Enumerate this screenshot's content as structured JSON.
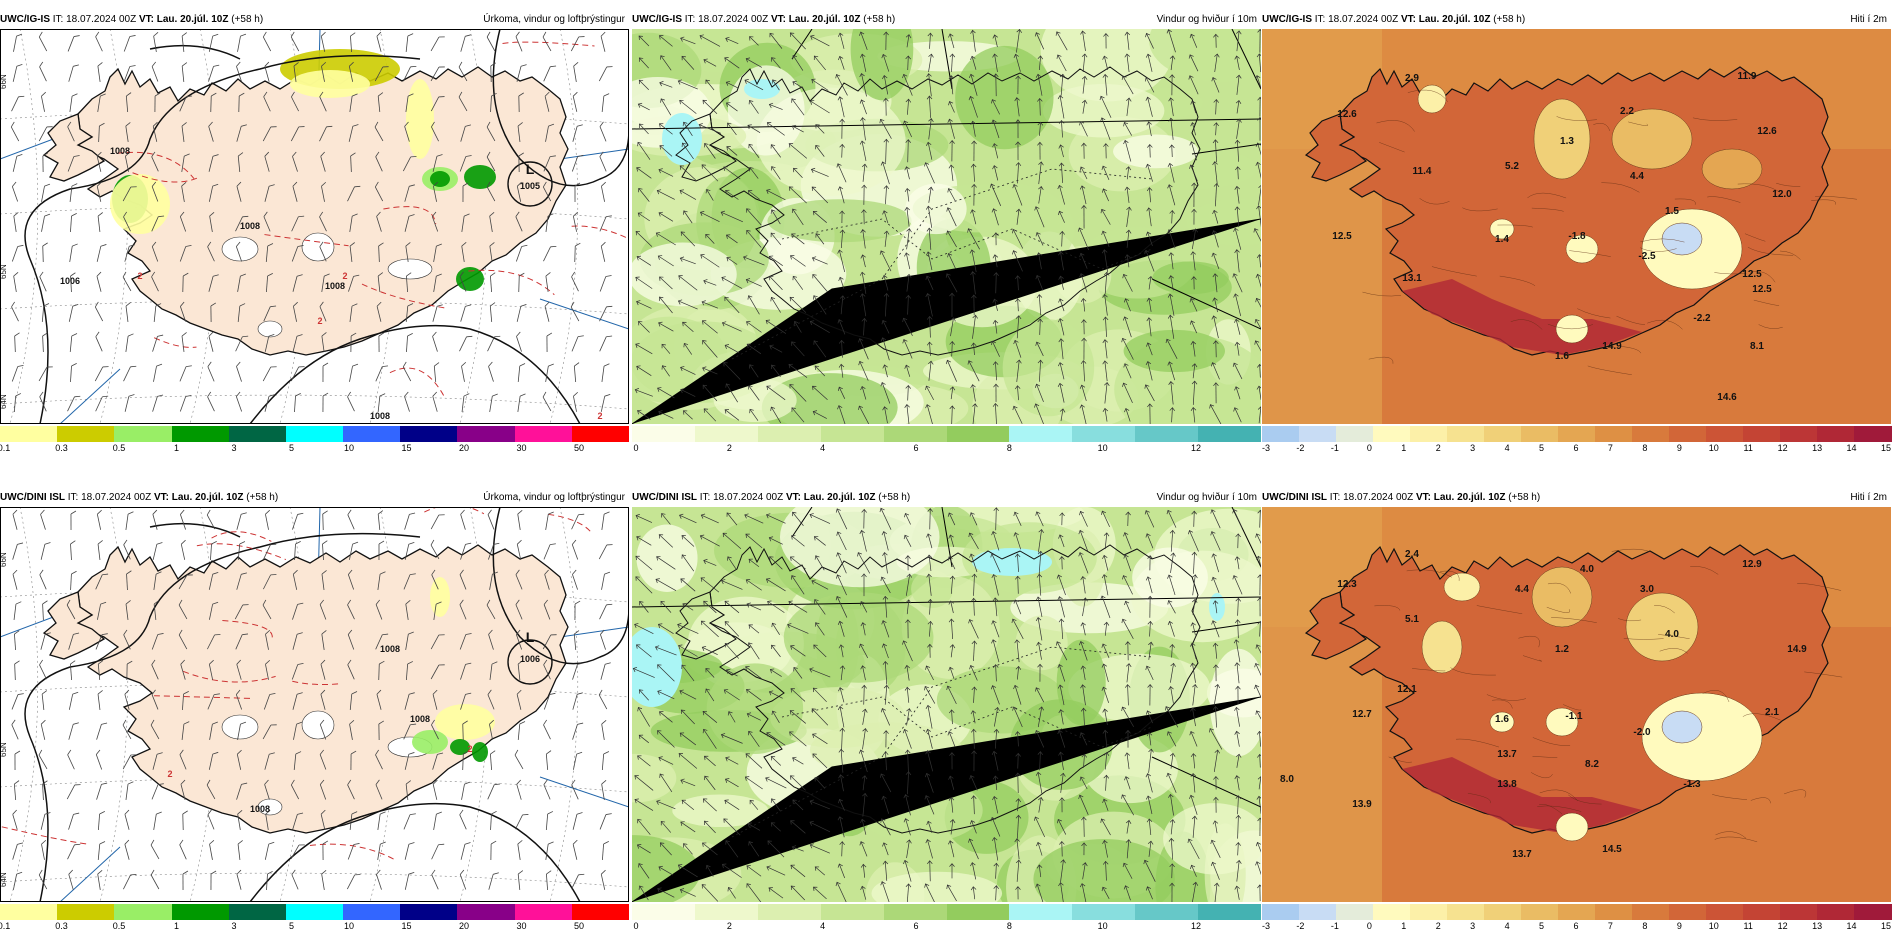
{
  "panels": [
    {
      "id": "p1",
      "model": "UWC/IG-IS",
      "it": "IT: 18.07.2024 00Z",
      "vt": "VT: Lau. 20.júl. 10Z",
      "lead": "(+58 h)",
      "title": "Úrkoma, vindur og loftþrýstingur",
      "type": "precip",
      "labels": [
        "L",
        "1005",
        "1008",
        "1008",
        "1006",
        "1008",
        "1008",
        "2",
        "2",
        "2",
        "2"
      ],
      "lat_labels": [
        "66N",
        "65N",
        "64N"
      ]
    },
    {
      "id": "p2",
      "model": "UWC/IG-IS",
      "it": "IT: 18.07.2024 00Z",
      "vt": "VT: Lau. 20.júl. 10Z",
      "lead": "(+58 h)",
      "title": "Vindur og hviður í 10m",
      "type": "wind",
      "labels": []
    },
    {
      "id": "p3",
      "model": "UWC/IG-IS",
      "it": "IT: 18.07.2024 00Z",
      "vt": "VT: Lau. 20.júl. 10Z",
      "lead": "(+58 h)",
      "title": "Hiti í 2m",
      "type": "temp",
      "labels": [
        "2.9",
        "12.6",
        "11.4",
        "12.5",
        "13.1",
        "14.6",
        "5.2",
        "1.3",
        "2.2",
        "4.4",
        "1.5",
        "12.6",
        "11.9",
        "12.0",
        "1.4",
        "-1.8",
        "-2.5",
        "12.5",
        "12.5",
        "-2.2",
        "8.1",
        "1.6",
        "14.9"
      ]
    },
    {
      "id": "p4",
      "model": "UWC/DINI ISL",
      "it": "IT: 18.07.2024 00Z",
      "vt": "VT: Lau. 20.júl. 10Z",
      "lead": "(+58 h)",
      "title": "Úrkoma, vindur og loftþrýstingur",
      "type": "precip",
      "labels": [
        "L",
        "1006",
        "1008",
        "1008",
        "1008",
        "2",
        "2"
      ],
      "lat_labels": [
        "66N",
        "65N",
        "64N"
      ]
    },
    {
      "id": "p5",
      "model": "UWC/DINI ISL",
      "it": "IT: 18.07.2024 00Z",
      "vt": "VT: Lau. 20.júl. 10Z",
      "lead": "(+58 h)",
      "title": "Vindur og hviður í 10m",
      "type": "wind",
      "labels": []
    },
    {
      "id": "p6",
      "model": "UWC/DINI ISL",
      "it": "IT: 18.07.2024 00Z",
      "vt": "VT: Lau. 20.júl. 10Z",
      "lead": "(+58 h)",
      "title": "Hiti í 2m",
      "type": "temp",
      "labels": [
        "2.4",
        "12.3",
        "5.1",
        "4.4",
        "4.0",
        "3.0",
        "12.9",
        "12.1",
        "12.7",
        "1.2",
        "4.0",
        "14.9",
        "1.6",
        "-1.1",
        "-2.0",
        "2.1",
        "8.0",
        "13.9",
        "13.7",
        "13.8",
        "8.2",
        "-1.3",
        "13.7",
        "14.5"
      ]
    }
  ],
  "colorbars": {
    "precip": {
      "colors": [
        "#ffffa0",
        "#cccc00",
        "#99ee66",
        "#009900",
        "#006644",
        "#00ffff",
        "#3366ff",
        "#000088",
        "#880088",
        "#ff1199",
        "#ff0000"
      ],
      "tick_labels": [
        "0.1",
        "0.3",
        "0.5",
        "1",
        "3",
        "5",
        "10",
        "15",
        "20",
        "30",
        "50"
      ]
    },
    "wind": {
      "colors": [
        "#fbfde8",
        "#eef8cc",
        "#dcefb0",
        "#c6e594",
        "#acd878",
        "#93cc5e",
        "#aaf5f5",
        "#88dede",
        "#66c8c8",
        "#44b2b2"
      ],
      "tick_labels": [
        "0",
        "2",
        "4",
        "6",
        "8",
        "10",
        "12"
      ]
    },
    "temp": {
      "colors": [
        "#aaccf0",
        "#c8dcf4",
        "#e4ecda",
        "#fffabe",
        "#fcf0a8",
        "#f6e290",
        "#f0d078",
        "#eabc64",
        "#e4a652",
        "#de9044",
        "#d87a3c",
        "#d26638",
        "#cc5436",
        "#c44434",
        "#bc3636",
        "#b02836",
        "#a01a3a"
      ],
      "tick_labels": [
        "-3",
        "-2",
        "-1",
        "0",
        "1",
        "2",
        "3",
        "4",
        "5",
        "6",
        "7",
        "8",
        "9",
        "10",
        "11",
        "12",
        "13",
        "14",
        "15"
      ]
    }
  }
}
